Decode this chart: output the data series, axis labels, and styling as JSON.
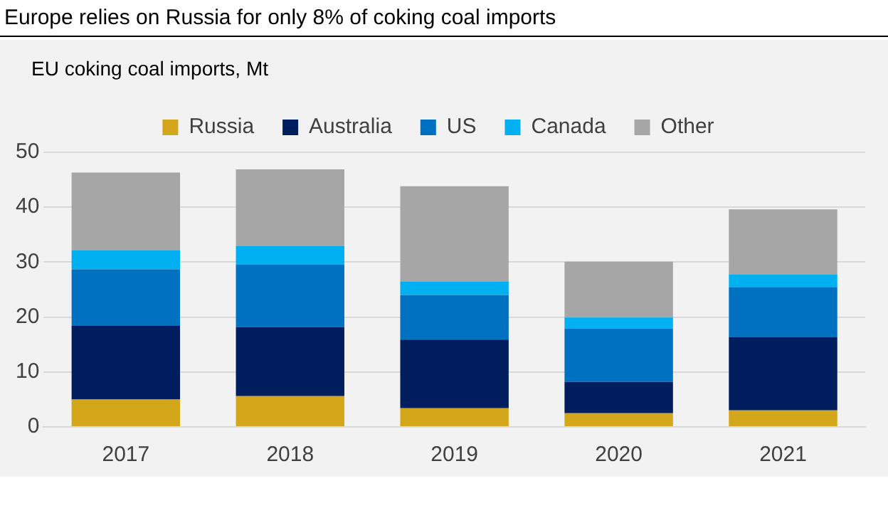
{
  "chart_data": {
    "type": "bar",
    "title": "Europe relies on Russia for only 8% of coking coal imports",
    "subtitle": "EU coking coal imports, Mt",
    "categories": [
      "2017",
      "2018",
      "2019",
      "2020",
      "2021"
    ],
    "stacked": true,
    "series": [
      {
        "name": "Russia",
        "color": "#d4a619",
        "values": [
          5.0,
          5.6,
          3.4,
          2.5,
          3.0
        ]
      },
      {
        "name": "Australia",
        "color": "#001e5e",
        "values": [
          13.4,
          12.6,
          12.5,
          5.7,
          13.4
        ]
      },
      {
        "name": "US",
        "color": "#0070c0",
        "values": [
          10.3,
          11.4,
          8.1,
          9.7,
          9.0
        ]
      },
      {
        "name": "Canada",
        "color": "#00b0f0",
        "values": [
          3.5,
          3.3,
          2.5,
          2.0,
          2.4
        ]
      },
      {
        "name": "Other",
        "color": "#a6a6a6",
        "values": [
          14.1,
          14.0,
          17.3,
          10.2,
          11.8
        ]
      }
    ],
    "ylim": [
      0,
      50
    ],
    "yticks": [
      0,
      10,
      20,
      30,
      40,
      50
    ],
    "grid": "y",
    "legend": "top"
  }
}
